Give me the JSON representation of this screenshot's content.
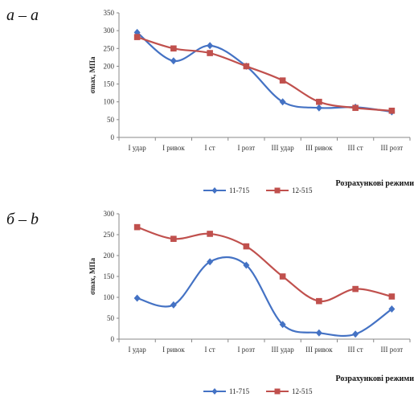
{
  "chart_data": [
    {
      "type": "line",
      "panel_label": "a – a",
      "title": "",
      "xlabel": "Розрахункові режими",
      "ylabel": "σmax, МПа",
      "categories": [
        "I удар",
        "I ривок",
        "I ст",
        "I розт",
        "III удар",
        "III ривок",
        "III ст",
        "III розт"
      ],
      "yticks": [
        0,
        50,
        100,
        150,
        200,
        250,
        300,
        350
      ],
      "ylim": [
        0,
        350
      ],
      "grid": false,
      "legend_position": "bottom",
      "series": [
        {
          "name": "11-715",
          "color": "#4472C4",
          "marker": "diamond",
          "values": [
            295,
            215,
            258,
            200,
            100,
            83,
            85,
            72
          ]
        },
        {
          "name": "12-515",
          "color": "#C0504D",
          "marker": "square",
          "values": [
            282,
            250,
            237,
            200,
            160,
            100,
            83,
            75
          ]
        }
      ]
    },
    {
      "type": "line",
      "panel_label": "б – b",
      "title": "",
      "xlabel": "Розрахункові режими",
      "ylabel": "σmax, МПа",
      "categories": [
        "I удар",
        "I ривок",
        "I ст",
        "I розт",
        "III удар",
        "III ривок",
        "III ст",
        "III розт"
      ],
      "yticks": [
        0,
        50,
        100,
        150,
        200,
        250,
        300
      ],
      "ylim": [
        0,
        300
      ],
      "grid": false,
      "legend_position": "bottom",
      "series": [
        {
          "name": "11-715",
          "color": "#4472C4",
          "marker": "diamond",
          "values": [
            98,
            82,
            185,
            177,
            35,
            15,
            12,
            72
          ]
        },
        {
          "name": "12-515",
          "color": "#C0504D",
          "marker": "square",
          "values": [
            268,
            240,
            252,
            222,
            150,
            91,
            120,
            102
          ]
        }
      ]
    }
  ]
}
